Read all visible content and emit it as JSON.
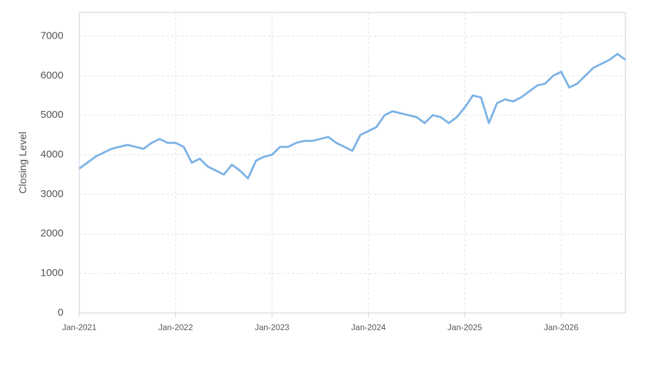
{
  "chart_data": {
    "type": "line",
    "y_label": "Closing Level",
    "color": "#7eb3e6",
    "grid": true,
    "x": [
      "2021-01",
      "2021-02",
      "2021-03",
      "2021-04",
      "2021-05",
      "2021-06",
      "2021-07",
      "2021-08",
      "2021-09",
      "2021-10",
      "2021-11",
      "2021-12",
      "2022-01",
      "2022-02",
      "2022-03",
      "2022-04",
      "2022-05",
      "2022-06",
      "2022-07",
      "2022-08",
      "2022-09",
      "2022-10",
      "2022-11",
      "2022-12",
      "2023-01",
      "2023-02",
      "2023-03",
      "2023-04",
      "2023-05",
      "2023-06",
      "2023-07",
      "2023-08",
      "2023-09",
      "2023-10",
      "2023-11",
      "2023-12",
      "2024-01",
      "2024-02",
      "2024-03",
      "2024-04",
      "2024-05",
      "2024-06",
      "2024-07",
      "2024-08",
      "2024-09",
      "2024-10",
      "2024-11",
      "2024-12",
      "2025-01",
      "2025-02",
      "2025-03",
      "2025-04",
      "2025-05",
      "2025-06",
      "2025-07",
      "2025-08",
      "2025-09",
      "2025-10",
      "2025-11",
      "2025-12",
      "2026-01",
      "2026-02",
      "2026-03",
      "2026-04",
      "2026-05",
      "2026-06",
      "2026-07",
      "2026-08",
      "2026-09"
    ],
    "values": [
      3650,
      3800,
      3950,
      4050,
      4150,
      4200,
      4250,
      4200,
      4150,
      4300,
      4400,
      4300,
      4300,
      4200,
      3800,
      3900,
      3700,
      3600,
      3500,
      3750,
      3600,
      3400,
      3850,
      3950,
      4000,
      4200,
      4200,
      4300,
      4350,
      4350,
      4400,
      4450,
      4300,
      4200,
      4100,
      4500,
      4600,
      4700,
      5000,
      5100,
      5050,
      5000,
      4950,
      4800,
      5000,
      4950,
      4800,
      4950,
      5200,
      5500,
      5450,
      4800,
      5300,
      5400,
      5350,
      5450,
      5600,
      5750,
      5800,
      6000,
      6100,
      5700,
      5800,
      6000,
      6200,
      6300,
      6400,
      6550,
      6400
    ],
    "xlim": [
      "2021-01",
      "2026-09"
    ],
    "xticks": [
      {
        "value": "2021-01",
        "label": "Jan-2021"
      },
      {
        "value": "2022-01",
        "label": "Jan-2022"
      },
      {
        "value": "2023-01",
        "label": "Jan-2023"
      },
      {
        "value": "2024-01",
        "label": "Jan-2024"
      },
      {
        "value": "2025-01",
        "label": "Jan-2025"
      },
      {
        "value": "2026-01",
        "label": "Jan-2026"
      }
    ],
    "ylim": [
      0,
      7600
    ],
    "yticks": [
      0,
      1000,
      2000,
      3000,
      4000,
      5000,
      6000,
      7000
    ]
  }
}
